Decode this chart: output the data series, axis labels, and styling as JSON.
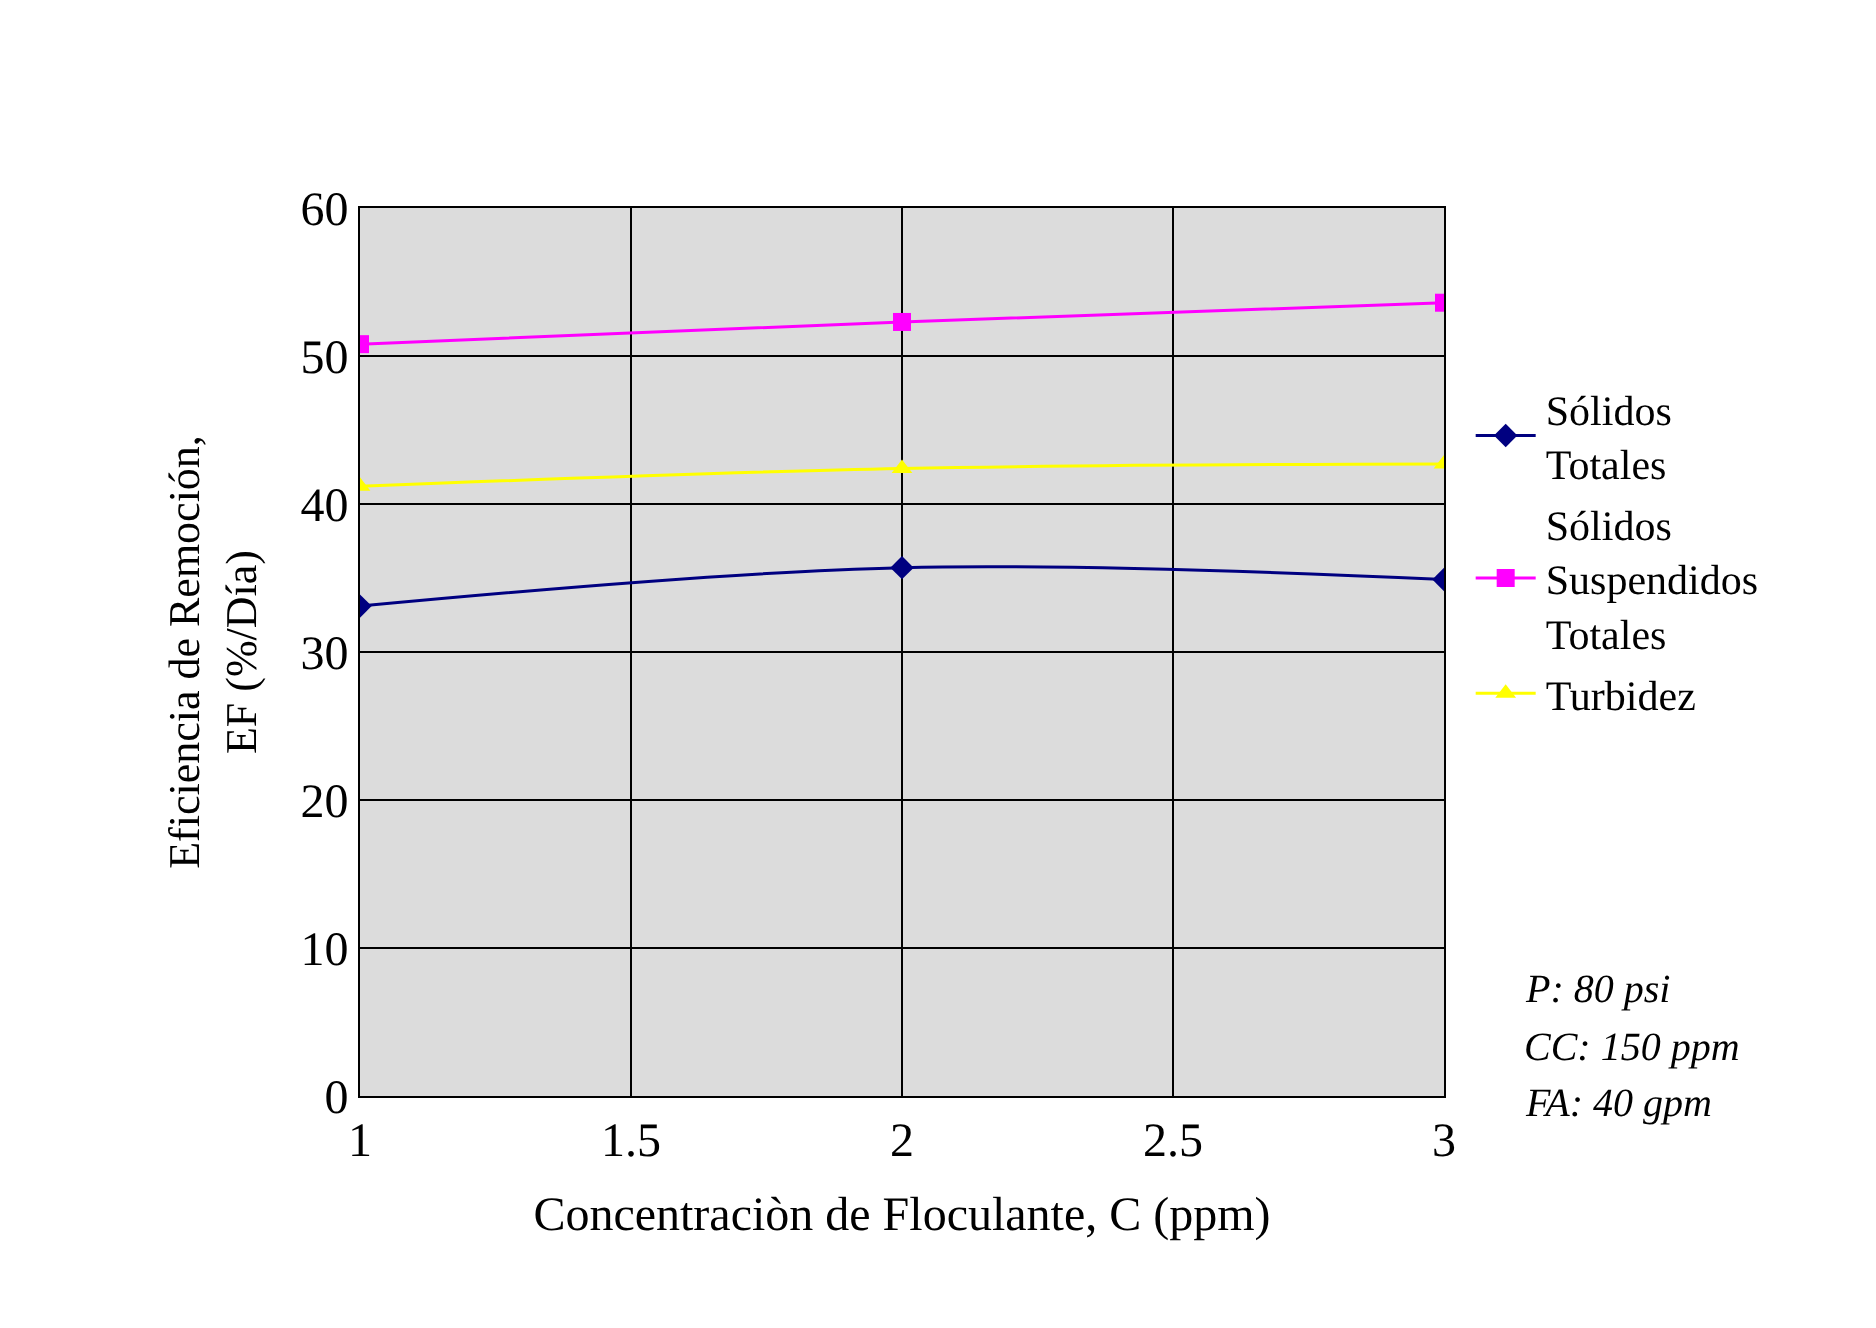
{
  "chart_data": {
    "type": "line",
    "xlabel": "Concentraciòn de Floculante, C (ppm)",
    "ylabel": "Eficiencia de Remoción, EF (%/Día)",
    "x": [
      1,
      2,
      3
    ],
    "series": [
      {
        "name": "Sólidos Totales",
        "color": "#000080",
        "marker": "diamond",
        "values": [
          33.1,
          35.7,
          34.9
        ]
      },
      {
        "name": "Sólidos Suspendidos Totales",
        "color": "#ff00ff",
        "marker": "square",
        "values": [
          50.8,
          52.3,
          53.6
        ]
      },
      {
        "name": "Turbidez",
        "color": "#ffff00",
        "marker": "triangle",
        "values": [
          41.2,
          42.4,
          42.7
        ]
      }
    ],
    "xlim": [
      1,
      3
    ],
    "xticks": [
      1,
      1.5,
      2,
      2.5,
      3
    ],
    "ylim": [
      0,
      60
    ],
    "yticks": [
      0,
      10,
      20,
      30,
      40,
      50,
      60
    ],
    "grid": true,
    "legend": "right",
    "annotations": [
      "P: 80 psi",
      "CC: 150 ppm",
      "FA: 40 gpm"
    ]
  }
}
